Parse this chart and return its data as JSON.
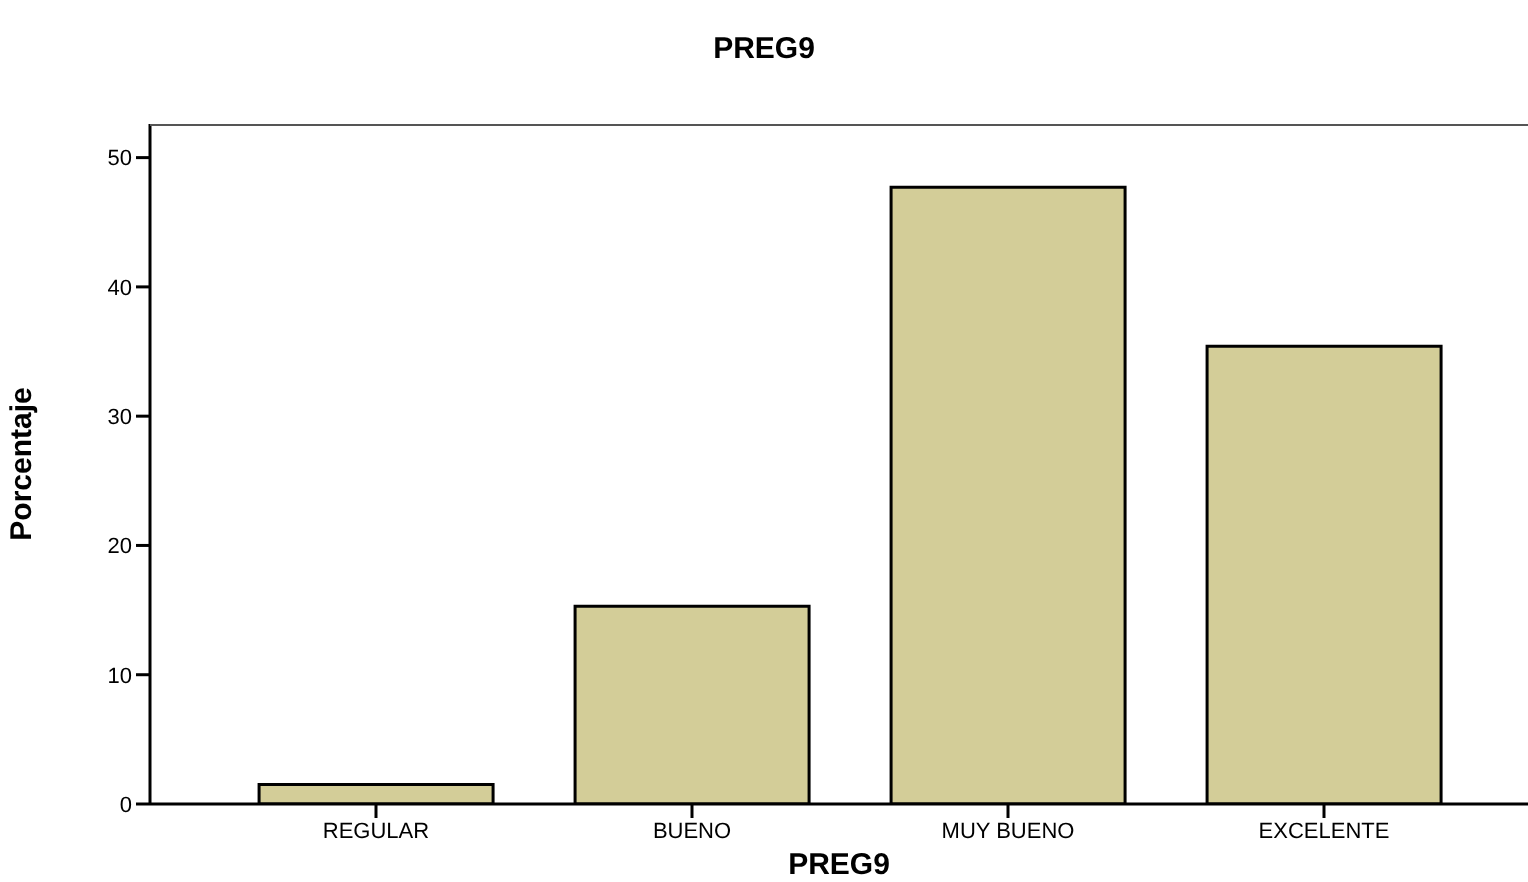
{
  "chart_data": {
    "type": "bar",
    "title": "PREG9",
    "xlabel": "PREG9",
    "ylabel": "Porcentaje",
    "categories": [
      "REGULAR",
      "BUENO",
      "MUY BUENO",
      "EXCELENTE"
    ],
    "values": [
      1.5,
      15.3,
      47.7,
      35.4
    ],
    "color": "#d3cd98",
    "ylim": [
      0,
      52.6
    ],
    "yticks": [
      0,
      10,
      20,
      30,
      40,
      50
    ],
    "grid": false
  }
}
